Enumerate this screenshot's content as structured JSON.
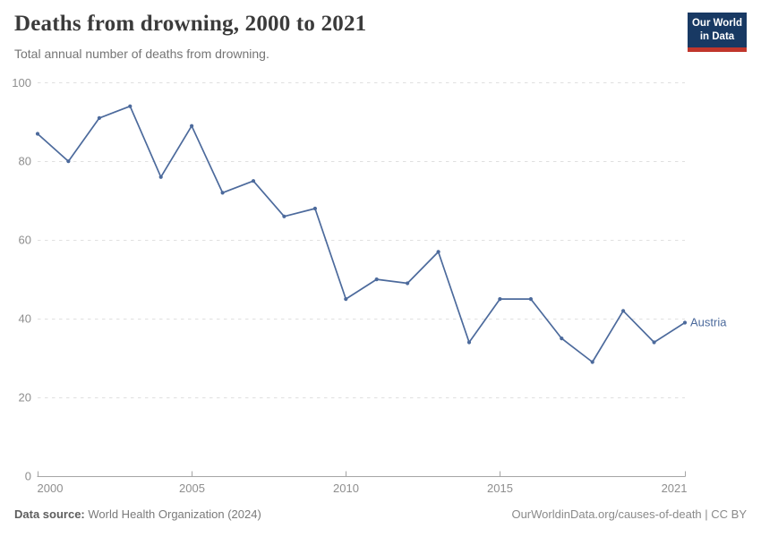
{
  "header": {
    "title": "Deaths from drowning, 2000 to 2021",
    "subtitle": "Total annual number of deaths from drowning.",
    "logo": {
      "line1": "Our World",
      "line2": "in Data",
      "bg_color": "#183963",
      "bar_color": "#c0362c"
    }
  },
  "chart_data": {
    "type": "line",
    "title": "Deaths from drowning, 2000 to 2021",
    "subtitle": "Total annual number of deaths from drowning.",
    "xlabel": "",
    "ylabel": "",
    "xlim": [
      2000,
      2021
    ],
    "ylim": [
      0,
      100
    ],
    "x_ticks": [
      2000,
      2005,
      2010,
      2015,
      2021
    ],
    "y_ticks": [
      0,
      20,
      40,
      60,
      80,
      100
    ],
    "grid": "horizontal-dashed",
    "legend_position": "end-of-line",
    "series": [
      {
        "name": "Austria",
        "color": "#4C6A9C",
        "x": [
          2000,
          2001,
          2002,
          2003,
          2004,
          2005,
          2006,
          2007,
          2008,
          2009,
          2010,
          2011,
          2012,
          2013,
          2014,
          2015,
          2016,
          2017,
          2018,
          2019,
          2020,
          2021
        ],
        "values": [
          87,
          80,
          91,
          94,
          76,
          89,
          72,
          75,
          66,
          68,
          45,
          50,
          49,
          57,
          34,
          45,
          45,
          35,
          29,
          42,
          34,
          39
        ]
      }
    ],
    "colors": {
      "gridline": "#e0e0e0",
      "axis": "#a5a5a5",
      "tick_text": "#8e8e8e"
    }
  },
  "footer": {
    "source_label": "Data source:",
    "source_text": " World Health Organization (2024)",
    "credit": "OurWorldinData.org/causes-of-death | CC BY"
  }
}
